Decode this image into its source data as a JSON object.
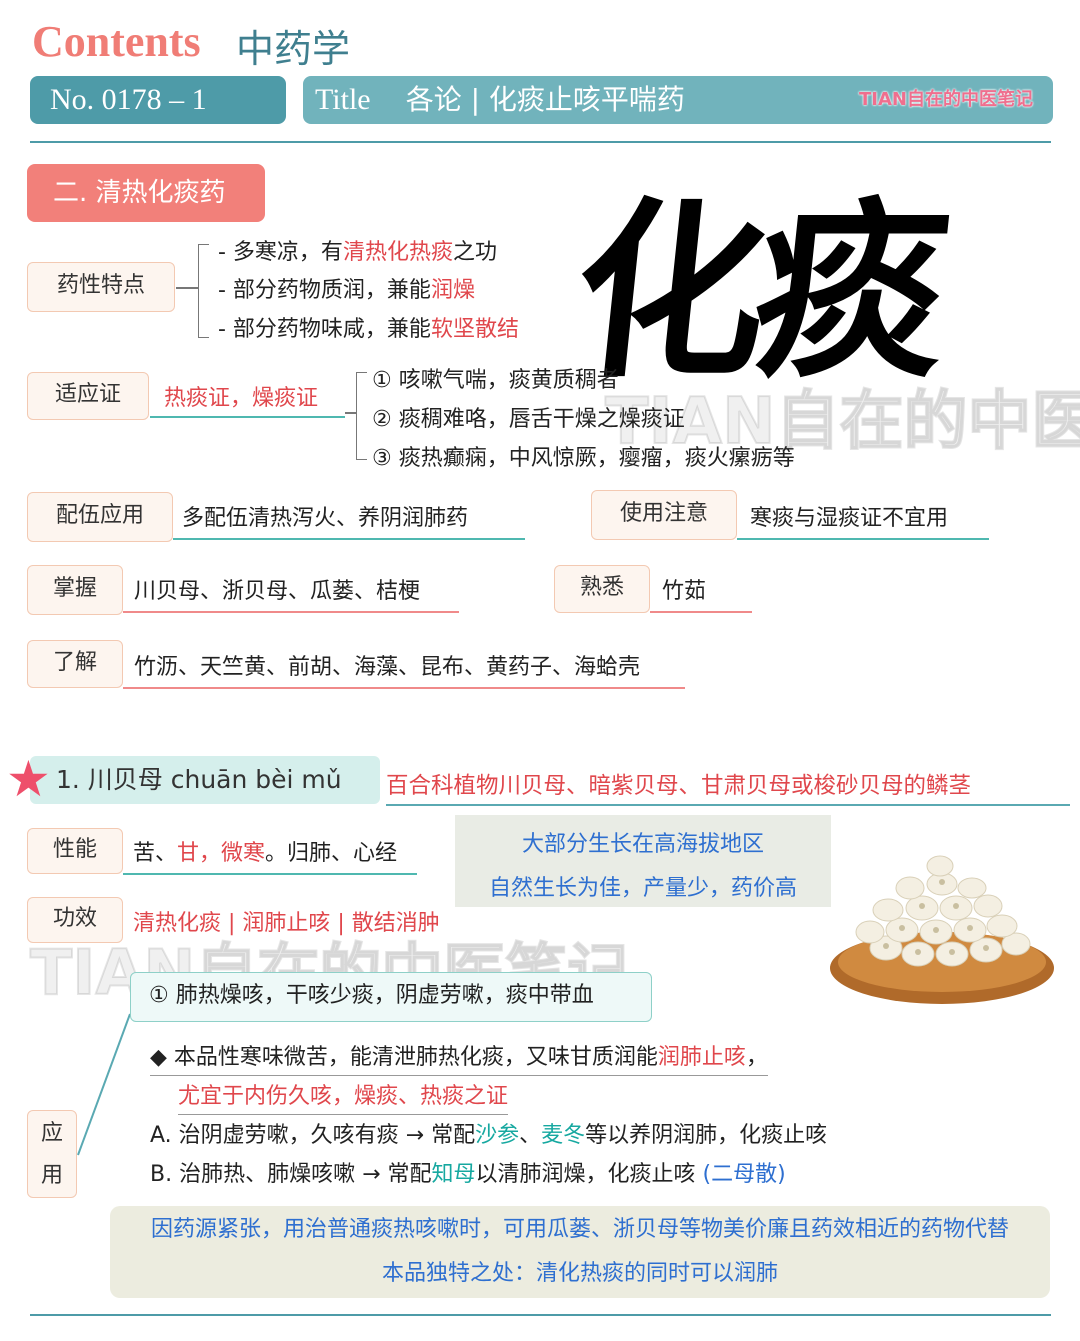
{
  "header": {
    "contents_label": "Contents",
    "subject": "中药学",
    "number": "No. 0178 – 1",
    "title_word": "Title",
    "title_text": "各论 | 化痰止咳平喘药",
    "brand": "TIAN自在的中医笔记"
  },
  "section": {
    "heading": "二. 清热化痰药",
    "calligraphy": "化痰",
    "watermark": "TIAN自在的中医笔记"
  },
  "properties": {
    "label": "药性特点",
    "lines": [
      {
        "prefix": "- 多寒凉，有",
        "highlight": "清热化热痰",
        "suffix": "之功"
      },
      {
        "prefix": "- 部分药物质润，兼能",
        "highlight": "润燥",
        "suffix": ""
      },
      {
        "prefix": "- 部分药物味咸，兼能",
        "highlight": "软坚散结",
        "suffix": ""
      }
    ]
  },
  "indications": {
    "label": "适应证",
    "value": "热痰证，燥痰证",
    "items": [
      "① 咳嗽气喘，痰黄质稠者",
      "② 痰稠难咯，唇舌干燥之燥痰证",
      "③ 痰热癫痫，中风惊厥，瘿瘤，痰火瘰疬等"
    ]
  },
  "compat": {
    "label": "配伍应用",
    "value": "多配伍清热泻火、养阴润肺药"
  },
  "caution": {
    "label": "使用注意",
    "value": "寒痰与湿痰证不宜用"
  },
  "master": {
    "label": "掌握",
    "value": "川贝母、浙贝母、瓜蒌、桔梗"
  },
  "familiar": {
    "label": "熟悉",
    "value": "竹茹"
  },
  "understand": {
    "label": "了解",
    "value": "竹沥、天竺黄、前胡、海藻、昆布、黄药子、海蛤壳"
  },
  "herb": {
    "title": "1.  川贝母  chuān bèi mǔ",
    "source": "百合科植物川贝母、暗紫贝母、甘肃贝母或梭砂贝母的鳞茎",
    "nature_label": "性能",
    "nature_parts": [
      {
        "text": "苦、",
        "color": "normal"
      },
      {
        "text": "甘，微寒",
        "color": "red"
      },
      {
        "text": "。归肺、心经",
        "color": "normal"
      }
    ],
    "habitat_lines": [
      "大部分生长在高海拔地区",
      "自然生长为佳，产量少，药价高"
    ],
    "effect_label": "功效",
    "effect_value": "清热化痰 | 润肺止咳 | 散结消肿",
    "apply_label_1": "应",
    "apply_label_2": "用",
    "apply_heading": "① 肺热燥咳，干咳少痰，阴虚劳嗽，痰中带血",
    "bullet_line1_prefix": "◆ 本品性寒味微苦，能清泄肺热化痰，又味甘质润能",
    "bullet_line1_highlight": "润肺止咳",
    "bullet_line1_suffix": "，",
    "bullet_line2": "尤宜于内伤久咳，燥痰、热痰之证",
    "line_a": [
      {
        "text": "A. 治阴虚劳嗽，久咳有痰 → 常配",
        "color": "normal"
      },
      {
        "text": "沙参",
        "color": "teal"
      },
      {
        "text": "、",
        "color": "normal"
      },
      {
        "text": "麦冬",
        "color": "teal"
      },
      {
        "text": "等以养阴润肺，化痰止咳",
        "color": "normal"
      }
    ],
    "line_b": [
      {
        "text": "B. 治肺热、肺燥咳嗽 → 常配",
        "color": "normal"
      },
      {
        "text": "知母",
        "color": "teal"
      },
      {
        "text": "以清肺润燥，化痰止咳  ",
        "color": "normal"
      },
      {
        "text": "(二母散)",
        "color": "blue"
      }
    ],
    "note_lines": [
      "因药源紧张，用治普通痰热咳嗽时，可用瓜蒌、浙贝母等物美价廉且药效相近的药物代替",
      "本品独特之处：清化热痰的同时可以润肺"
    ]
  },
  "icons": {
    "star": "star-icon",
    "bulb_plate": "bulb-plate-illustration"
  }
}
